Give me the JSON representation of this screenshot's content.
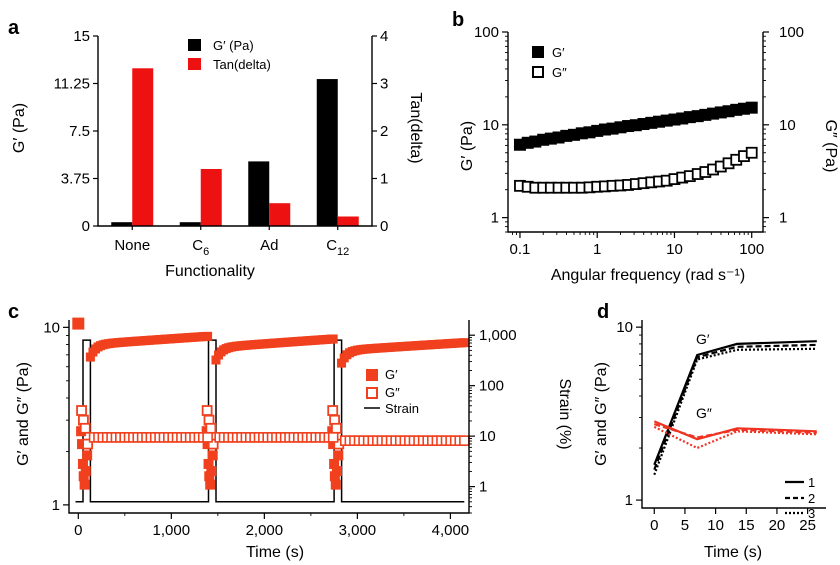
{
  "panels": {
    "a": {
      "label": "a"
    },
    "b": {
      "label": "b"
    },
    "c": {
      "label": "c"
    },
    "d": {
      "label": "d"
    }
  },
  "chart_data": [
    {
      "panel": "a",
      "type": "bar",
      "xlabel": "Functionality",
      "ylabel": "G′ (Pa)",
      "y2label": "Tan(delta)",
      "categories": [
        "None",
        "C6",
        "Ad",
        "C12"
      ],
      "category_labels": [
        {
          "base": "None",
          "sub": ""
        },
        {
          "base": "C",
          "sub": "6"
        },
        {
          "base": "Ad",
          "sub": ""
        },
        {
          "base": "C",
          "sub": "12"
        }
      ],
      "ylim": [
        0,
        15
      ],
      "y2lim": [
        0,
        4
      ],
      "yticks": [
        "0",
        "3.75",
        "7.5",
        "11.25",
        "15"
      ],
      "y2ticks": [
        "0",
        "1",
        "2",
        "3",
        "4"
      ],
      "series": [
        {
          "name": "G′ (Pa)",
          "axis": "left",
          "color": "#000000",
          "values": [
            0.3,
            0.3,
            5.1,
            11.6
          ]
        },
        {
          "name": "Tan(delta)",
          "axis": "right",
          "color": "#ee1111",
          "values": [
            3.32,
            1.2,
            0.48,
            0.2
          ]
        }
      ],
      "legend": "top-left"
    },
    {
      "panel": "b",
      "type": "scatter",
      "xscale": "log",
      "yscale": "log",
      "xlabel": "Angular frequency (rad s⁻¹)",
      "ylabel": "G′ (Pa)",
      "y2label": "G″ (Pa)",
      "xlim": [
        0.07,
        140
      ],
      "ylim": [
        0.7,
        100
      ],
      "xticks": [
        "0.1",
        "1",
        "10",
        "100"
      ],
      "yticks": [
        "1",
        "10",
        "100"
      ],
      "y2ticks": [
        "1",
        "10",
        "100"
      ],
      "x": [
        0.1,
        0.126,
        0.158,
        0.2,
        0.251,
        0.316,
        0.398,
        0.501,
        0.631,
        0.794,
        1,
        1.26,
        1.58,
        2,
        2.51,
        3.16,
        3.98,
        5.01,
        6.31,
        7.94,
        10,
        12.6,
        15.8,
        20,
        25.1,
        31.6,
        39.8,
        50.1,
        63.1,
        79.4,
        100
      ],
      "series": [
        {
          "name": "G′",
          "marker": "filled-square",
          "color": "#000000",
          "values": [
            6.1,
            6.4,
            6.6,
            6.9,
            7.1,
            7.3,
            7.6,
            7.8,
            8.1,
            8.3,
            8.6,
            8.9,
            9.1,
            9.4,
            9.7,
            9.9,
            10.2,
            10.5,
            10.8,
            11.1,
            11.4,
            11.7,
            12.1,
            12.4,
            12.8,
            13.2,
            13.6,
            14.0,
            14.5,
            14.9,
            15.3
          ]
        },
        {
          "name": "G″",
          "marker": "open-square",
          "color": "#000000",
          "values": [
            2.2,
            2.15,
            2.1,
            2.1,
            2.1,
            2.1,
            2.1,
            2.1,
            2.1,
            2.12,
            2.15,
            2.17,
            2.2,
            2.22,
            2.25,
            2.3,
            2.35,
            2.4,
            2.45,
            2.5,
            2.6,
            2.7,
            2.8,
            2.95,
            3.1,
            3.3,
            3.55,
            3.85,
            4.2,
            4.6,
            5.0
          ]
        }
      ],
      "legend": "top-left"
    },
    {
      "panel": "c",
      "type": "scatter",
      "yscale": "log",
      "xlabel": "Time (s)",
      "ylabel": "G′ and G″ (Pa)",
      "y2label": "Strain (%)",
      "xlim": [
        -100,
        4200
      ],
      "ylim": [
        0.9,
        11
      ],
      "y2lim": [
        0.3,
        2000
      ],
      "xticks": [
        "0",
        "1,000",
        "2,000",
        "3,000",
        "4,000"
      ],
      "yticks": [
        "1",
        "10"
      ],
      "y2ticks": [
        "1",
        "10",
        "100",
        "1,000"
      ],
      "series": [
        {
          "name": "G′",
          "marker": "filled-square",
          "color": "#f0401e"
        },
        {
          "name": "G″",
          "marker": "open-square",
          "color": "#f0401e"
        },
        {
          "name": "Strain",
          "marker": "line",
          "color": "#000000"
        }
      ],
      "recovery_segments": [
        {
          "start": 130,
          "end": 1390,
          "g_start": 8.0,
          "g_end": 8.9,
          "gpp": 2.4
        },
        {
          "start": 1480,
          "end": 2740,
          "g_start": 7.7,
          "g_end": 8.6,
          "gpp": 2.4
        },
        {
          "start": 2830,
          "end": 4150,
          "g_start": 7.4,
          "g_end": 8.2,
          "gpp": 2.3
        }
      ],
      "strain_low": 0.5,
      "strain_high": 800,
      "strain_steps": [
        [
          -30,
          0.5
        ],
        [
          50,
          0.5
        ],
        [
          50,
          800
        ],
        [
          130,
          800
        ],
        [
          130,
          0.5
        ],
        [
          1400,
          0.5
        ],
        [
          1400,
          800
        ],
        [
          1480,
          800
        ],
        [
          1480,
          0.5
        ],
        [
          2750,
          0.5
        ],
        [
          2750,
          800
        ],
        [
          2830,
          800
        ],
        [
          2830,
          0.5
        ],
        [
          4150,
          0.5
        ]
      ],
      "legend": "right"
    },
    {
      "panel": "d",
      "type": "line",
      "yscale": "log",
      "xlabel": "Time (s)",
      "ylabel": "G′ and G″ (Pa)",
      "xlim": [
        -2,
        28
      ],
      "ylim": [
        0.9,
        11
      ],
      "xticks": [
        "0",
        "5",
        "10",
        "15",
        "20",
        "25"
      ],
      "yticks": [
        "1",
        "10"
      ],
      "x": [
        0,
        7,
        13.5,
        26.5
      ],
      "series": [
        {
          "name": "1",
          "quantity": "G′",
          "style": "solid",
          "color": "#000000",
          "values": [
            1.6,
            6.9,
            8.0,
            8.3
          ]
        },
        {
          "name": "2",
          "quantity": "G′",
          "style": "dashed",
          "color": "#000000",
          "values": [
            1.5,
            6.7,
            7.7,
            7.9
          ]
        },
        {
          "name": "3",
          "quantity": "G′",
          "style": "dotted",
          "color": "#000000",
          "values": [
            1.4,
            6.5,
            7.4,
            7.5
          ]
        },
        {
          "name": "1",
          "quantity": "G″",
          "style": "solid",
          "color": "#ee3322",
          "values": [
            2.85,
            2.25,
            2.6,
            2.5
          ]
        },
        {
          "name": "2",
          "quantity": "G″",
          "style": "dashed",
          "color": "#ee3322",
          "values": [
            2.75,
            2.3,
            2.55,
            2.45
          ]
        },
        {
          "name": "3",
          "quantity": "G″",
          "style": "dotted",
          "color": "#ee3322",
          "values": [
            2.65,
            2.0,
            2.5,
            2.4
          ]
        }
      ],
      "annotations": [
        "G′",
        "G″"
      ],
      "legend": "bottom-right"
    }
  ]
}
